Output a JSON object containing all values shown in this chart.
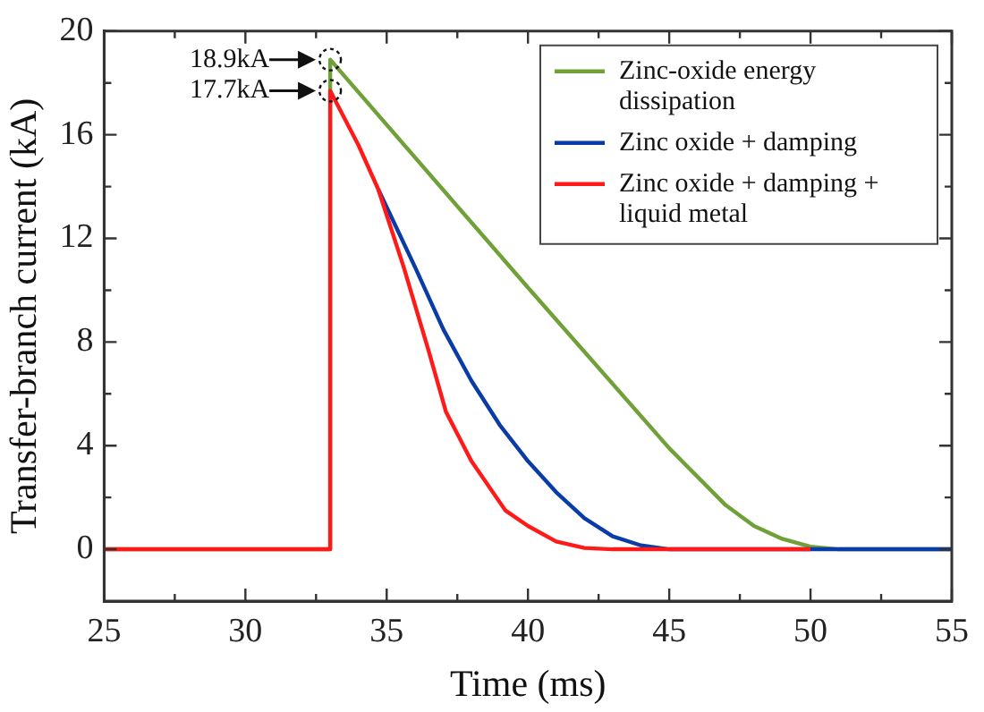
{
  "chart_data": {
    "type": "line",
    "xlabel": "Time (ms)",
    "ylabel": "Transfer-branch current (kA)",
    "xlim": [
      25,
      55
    ],
    "xticks": [
      25,
      {
        "value": 27.5,
        "label": null
      },
      30,
      {
        "value": 32.5,
        "label": null
      },
      35,
      {
        "value": 37.5,
        "label": null
      },
      40,
      {
        "value": 42.5,
        "label": null
      },
      45,
      {
        "value": 47.5,
        "label": null
      },
      50,
      {
        "value": 52.5,
        "label": null
      },
      55
    ],
    "ylim": [
      -2,
      20
    ],
    "yticks": [
      0,
      {
        "value": 2,
        "label": null
      },
      4,
      {
        "value": 6,
        "label": null
      },
      8,
      {
        "value": 10,
        "label": null
      },
      12,
      {
        "value": 14,
        "label": null
      },
      16,
      {
        "value": 18,
        "label": null
      },
      20
    ],
    "grid": false,
    "legend": "top right",
    "marker": "none",
    "line_style": "solid",
    "annotations": [
      {
        "text": "18.9kA",
        "x": 33,
        "y": 18.9
      },
      {
        "text": "17.7kA",
        "x": 33,
        "y": 17.7
      }
    ],
    "series": [
      {
        "name": "Zinc-oxide energy dissipation",
        "color": "#70a038",
        "x": [
          25,
          33,
          33,
          40,
          45,
          47,
          48,
          49,
          50,
          51,
          55
        ],
        "values": [
          0,
          0,
          18.9,
          10.1,
          3.9,
          1.7,
          0.9,
          0.4,
          0.1,
          0,
          0
        ]
      },
      {
        "name": "Zinc oxide + damping",
        "color": "#0a3ca8",
        "x": [
          34.7,
          36,
          37,
          38,
          39,
          40,
          41,
          42,
          43,
          44,
          45,
          55
        ],
        "values": [
          13.9,
          10.9,
          8.5,
          6.5,
          4.8,
          3.4,
          2.2,
          1.2,
          0.5,
          0.15,
          0,
          0
        ]
      },
      {
        "name": "Zinc oxide + damping + liquid metal",
        "color": "#ff1a1a",
        "x": [
          25,
          33,
          33,
          34,
          34.7,
          35.6,
          36.5,
          37.1,
          38,
          39.2,
          40,
          41,
          42,
          43,
          50
        ],
        "values": [
          0,
          0,
          17.7,
          15.6,
          13.9,
          10.9,
          7.6,
          5.3,
          3.4,
          1.5,
          0.9,
          0.3,
          0.05,
          0,
          0
        ]
      }
    ]
  }
}
